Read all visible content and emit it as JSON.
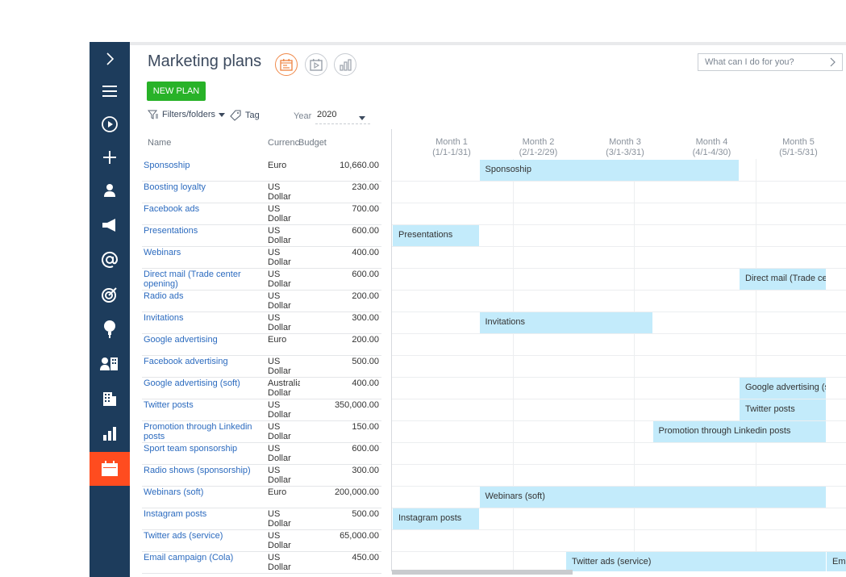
{
  "header": {
    "title": "Marketing plans",
    "search_placeholder": "What can I do for you?",
    "new_plan_label": "NEW PLAN",
    "filters_label": "Filters/folders",
    "tag_label": "Tag",
    "year_label": "Year",
    "year_value": "2020"
  },
  "columns": {
    "name": "Name",
    "currency": "Currenc",
    "budget": "Budget"
  },
  "rows": [
    {
      "name": "Sponsoship",
      "currency": [
        "Euro"
      ],
      "budget": "10,660.00"
    },
    {
      "name": "Boosting loyalty",
      "currency": [
        "US",
        "Dollar"
      ],
      "budget": "230.00"
    },
    {
      "name": "Facebook ads",
      "currency": [
        "US",
        "Dollar"
      ],
      "budget": "700.00"
    },
    {
      "name": "Presentations",
      "currency": [
        "US",
        "Dollar"
      ],
      "budget": "600.00"
    },
    {
      "name": "Webinars",
      "currency": [
        "US",
        "Dollar"
      ],
      "budget": "400.00"
    },
    {
      "name": "Direct mail (Trade center opening)",
      "currency": [
        "US",
        "Dollar"
      ],
      "budget": "600.00"
    },
    {
      "name": "Radio ads",
      "currency": [
        "US",
        "Dollar"
      ],
      "budget": "200.00"
    },
    {
      "name": "Invitations",
      "currency": [
        "US",
        "Dollar"
      ],
      "budget": "300.00"
    },
    {
      "name": "Google advertising",
      "currency": [
        "Euro"
      ],
      "budget": "200.00"
    },
    {
      "name": "Facebook advertising",
      "currency": [
        "US",
        "Dollar"
      ],
      "budget": "500.00"
    },
    {
      "name": "Google advertising (soft)",
      "currency": [
        "Australia",
        "Dollar"
      ],
      "budget": "400.00"
    },
    {
      "name": "Twitter posts",
      "currency": [
        "US",
        "Dollar"
      ],
      "budget": "350,000.00"
    },
    {
      "name": "Promotion through Linkedin posts",
      "currency": [
        "US",
        "Dollar"
      ],
      "budget": "150.00"
    },
    {
      "name": "Sport team sponsorship",
      "currency": [
        "US",
        "Dollar"
      ],
      "budget": "600.00"
    },
    {
      "name": "Radio shows (sponsorship)",
      "currency": [
        "US",
        "Dollar"
      ],
      "budget": "300.00"
    },
    {
      "name": "Webinars (soft)",
      "currency": [
        "Euro"
      ],
      "budget": "200,000.00"
    },
    {
      "name": "Instagram posts",
      "currency": [
        "US",
        "Dollar"
      ],
      "budget": "500.00"
    },
    {
      "name": "Twitter ads (service)",
      "currency": [
        "US",
        "Dollar"
      ],
      "budget": "65,000.00"
    },
    {
      "name": "Email campaign (Cola)",
      "currency": [
        "US",
        "Dollar"
      ],
      "budget": "450.00"
    }
  ],
  "months": [
    {
      "label": "Month 1",
      "range": "(1/1-1/31)"
    },
    {
      "label": "Month 2",
      "range": "(2/1-2/29)"
    },
    {
      "label": "Month 3",
      "range": "(3/1-3/31)"
    },
    {
      "label": "Month 4",
      "range": "(4/1-4/30)"
    },
    {
      "label": "Month 5",
      "range": "(5/1-5/31)"
    }
  ],
  "bars": [
    {
      "row": 0,
      "label": "Sponsoship",
      "start_month": 2,
      "end_month": 5
    },
    {
      "row": 3,
      "label": "Presentations",
      "start_month": 1,
      "end_month": 2
    },
    {
      "row": 5,
      "label": "Direct mail (Trade center opening)",
      "start_month": 5,
      "end_month": 6
    },
    {
      "row": 7,
      "label": "Invitations",
      "start_month": 2,
      "end_month": 4
    },
    {
      "row": 10,
      "label": "Google advertising (soft)",
      "start_month": 5,
      "end_month": 6
    },
    {
      "row": 11,
      "label": "Twitter posts",
      "start_month": 5,
      "end_month": 6
    },
    {
      "row": 12,
      "label": "Promotion through Linkedin posts",
      "start_month": 4,
      "end_month": 6
    },
    {
      "row": 15,
      "label": "Webinars (soft)",
      "start_month": 2,
      "end_month": 6
    },
    {
      "row": 16,
      "label": "Instagram posts",
      "start_month": 1,
      "end_month": 2
    },
    {
      "row": 18,
      "label": "Twitter ads (service)",
      "start_month": 3,
      "end_month": 6
    }
  ],
  "email_bar_label": "Ema",
  "sidebar": [
    {
      "icon": "chevron-right-icon"
    },
    {
      "icon": "menu-icon"
    },
    {
      "icon": "play-icon"
    },
    {
      "icon": "plus-icon"
    },
    {
      "icon": "contact-icon"
    },
    {
      "icon": "megaphone-icon"
    },
    {
      "icon": "at-sign-icon"
    },
    {
      "icon": "target-icon"
    },
    {
      "icon": "lightbulb-icon"
    },
    {
      "icon": "accounts-icon"
    },
    {
      "icon": "building-icon"
    },
    {
      "icon": "bar-chart-icon"
    },
    {
      "icon": "calendar-icon",
      "active": true
    }
  ],
  "colors": {
    "sidebar": "#1d3c5c",
    "active": "#ff4c1f",
    "new_plan": "#28b228",
    "bar": "#c3ebfb",
    "link": "#2c6bbf"
  }
}
